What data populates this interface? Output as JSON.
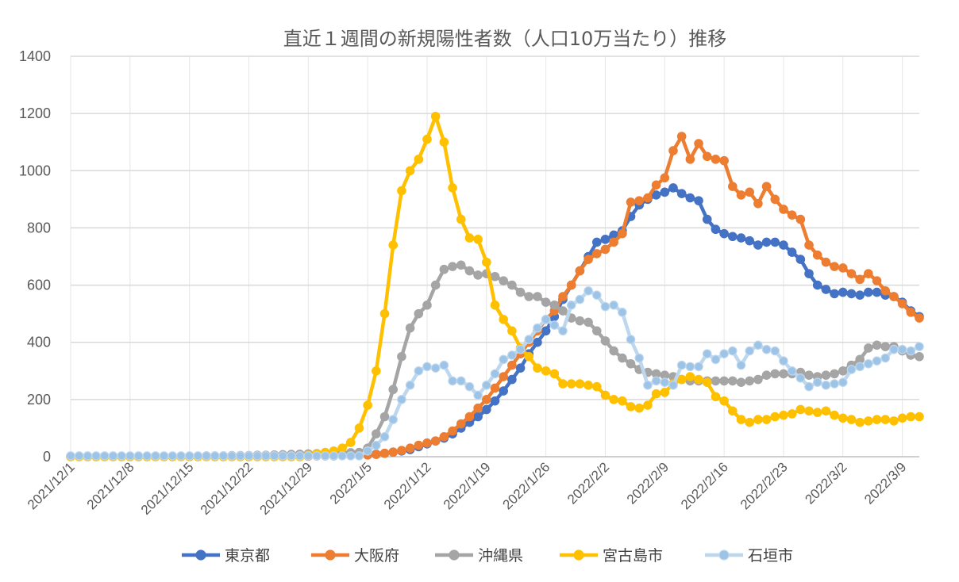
{
  "chart_data": {
    "type": "line",
    "title": "直近１週間の新規陽性者数（人口10万当たり）推移",
    "xlabel": "",
    "ylabel": "",
    "ylim": [
      0,
      1400
    ],
    "yticks": [
      0,
      200,
      400,
      600,
      800,
      1000,
      1200,
      1400
    ],
    "xticks": [
      {
        "day": 0,
        "label": "2021/12/1"
      },
      {
        "day": 7,
        "label": "2021/12/8"
      },
      {
        "day": 14,
        "label": "2021/12/15"
      },
      {
        "day": 21,
        "label": "2021/12/22"
      },
      {
        "day": 28,
        "label": "2021/12/29"
      },
      {
        "day": 35,
        "label": "2022/1/5"
      },
      {
        "day": 42,
        "label": "2022/1/12"
      },
      {
        "day": 49,
        "label": "2022/1/19"
      },
      {
        "day": 56,
        "label": "2022/1/26"
      },
      {
        "day": 63,
        "label": "2022/2/2"
      },
      {
        "day": 70,
        "label": "2022/2/9"
      },
      {
        "day": 77,
        "label": "2022/2/16"
      },
      {
        "day": 84,
        "label": "2022/2/23"
      },
      {
        "day": 91,
        "label": "2022/3/2"
      },
      {
        "day": 98,
        "label": "2022/3/9"
      }
    ],
    "x_start": "2021/12/1",
    "x_end": "2022/3/10",
    "grid": true,
    "legend_position": "bottom",
    "series": [
      {
        "name": "東京都",
        "color": "#4472C4",
        "marker_fill": "#4472C4",
        "values": [
          1,
          1,
          1,
          1,
          1,
          1,
          1,
          1,
          1,
          1,
          1,
          1,
          1,
          1,
          1,
          1,
          1,
          1,
          1,
          1,
          2,
          2,
          2,
          2,
          2,
          2,
          2,
          2,
          2,
          3,
          3,
          3,
          4,
          4,
          5,
          7,
          9,
          12,
          16,
          20,
          25,
          35,
          45,
          55,
          65,
          80,
          100,
          120,
          140,
          165,
          195,
          230,
          270,
          310,
          360,
          400,
          440,
          490,
          550,
          600,
          650,
          700,
          750,
          760,
          775,
          790,
          840,
          880,
          900,
          915,
          925,
          940,
          920,
          905,
          895,
          830,
          795,
          780,
          770,
          765,
          755,
          740,
          750,
          750,
          740,
          715,
          690,
          640,
          600,
          585,
          570,
          575,
          570,
          565,
          575,
          575,
          565,
          560,
          540,
          510,
          490
        ]
      },
      {
        "name": "大阪府",
        "color": "#ED7D31",
        "marker_fill": "#ED7D31",
        "values": [
          1,
          1,
          1,
          1,
          1,
          1,
          1,
          1,
          1,
          1,
          1,
          1,
          1,
          1,
          1,
          1,
          1,
          1,
          1,
          1,
          2,
          2,
          2,
          2,
          2,
          2,
          2,
          2,
          2,
          3,
          3,
          3,
          4,
          4,
          5,
          6,
          8,
          12,
          16,
          22,
          30,
          40,
          48,
          55,
          70,
          90,
          115,
          140,
          170,
          200,
          240,
          280,
          320,
          360,
          400,
          440,
          480,
          510,
          560,
          600,
          650,
          690,
          710,
          725,
          750,
          780,
          890,
          895,
          905,
          950,
          975,
          1070,
          1120,
          1040,
          1095,
          1050,
          1040,
          1035,
          945,
          915,
          925,
          885,
          945,
          900,
          865,
          845,
          830,
          740,
          705,
          680,
          665,
          660,
          640,
          620,
          640,
          615,
          580,
          560,
          535,
          505,
          485
        ]
      },
      {
        "name": "沖縄県",
        "color": "#A5A5A5",
        "marker_fill": "#A5A5A5",
        "values": [
          2,
          2,
          2,
          2,
          2,
          2,
          2,
          2,
          2,
          2,
          2,
          2,
          2,
          2,
          2,
          2,
          3,
          3,
          3,
          4,
          4,
          4,
          5,
          5,
          6,
          7,
          8,
          9,
          10,
          11,
          12,
          12,
          13,
          14,
          15,
          30,
          80,
          140,
          235,
          350,
          450,
          500,
          530,
          600,
          655,
          665,
          670,
          650,
          635,
          640,
          630,
          615,
          600,
          575,
          560,
          560,
          540,
          530,
          510,
          485,
          475,
          470,
          440,
          405,
          370,
          345,
          325,
          305,
          295,
          290,
          285,
          280,
          270,
          265,
          265,
          265,
          265,
          265,
          265,
          260,
          265,
          270,
          285,
          290,
          290,
          290,
          295,
          285,
          280,
          285,
          290,
          300,
          320,
          340,
          380,
          390,
          385,
          385,
          370,
          355,
          350
        ]
      },
      {
        "name": "宮古島市",
        "color": "#FFC000",
        "marker_fill": "#FFC000",
        "values": [
          0,
          0,
          0,
          0,
          0,
          0,
          0,
          0,
          0,
          0,
          0,
          0,
          0,
          0,
          0,
          0,
          0,
          0,
          0,
          0,
          0,
          0,
          0,
          0,
          0,
          0,
          0,
          0,
          5,
          10,
          15,
          20,
          30,
          50,
          100,
          180,
          300,
          500,
          740,
          930,
          1000,
          1040,
          1110,
          1190,
          1100,
          940,
          830,
          765,
          760,
          680,
          530,
          480,
          440,
          380,
          350,
          310,
          300,
          290,
          255,
          255,
          255,
          250,
          245,
          215,
          200,
          195,
          175,
          170,
          180,
          220,
          225,
          255,
          270,
          280,
          270,
          260,
          210,
          195,
          160,
          130,
          120,
          130,
          130,
          140,
          145,
          150,
          165,
          160,
          155,
          160,
          145,
          135,
          130,
          120,
          125,
          130,
          130,
          125,
          135,
          140,
          140
        ]
      },
      {
        "name": "石垣市",
        "color": "#BDD7EE",
        "marker_fill": "#9DC3E6",
        "values": [
          3,
          3,
          3,
          3,
          3,
          3,
          3,
          3,
          3,
          3,
          3,
          3,
          3,
          3,
          3,
          3,
          3,
          3,
          3,
          3,
          3,
          3,
          3,
          3,
          3,
          3,
          3,
          3,
          3,
          3,
          3,
          3,
          3,
          3,
          3,
          20,
          40,
          70,
          130,
          200,
          250,
          300,
          315,
          310,
          320,
          265,
          265,
          245,
          215,
          250,
          290,
          340,
          355,
          375,
          410,
          450,
          480,
          460,
          440,
          530,
          550,
          580,
          565,
          525,
          530,
          505,
          410,
          345,
          250,
          265,
          260,
          250,
          320,
          315,
          315,
          360,
          340,
          360,
          370,
          320,
          370,
          390,
          375,
          370,
          335,
          300,
          275,
          245,
          260,
          250,
          255,
          260,
          305,
          315,
          325,
          335,
          345,
          375,
          375,
          370,
          385
        ]
      }
    ]
  }
}
